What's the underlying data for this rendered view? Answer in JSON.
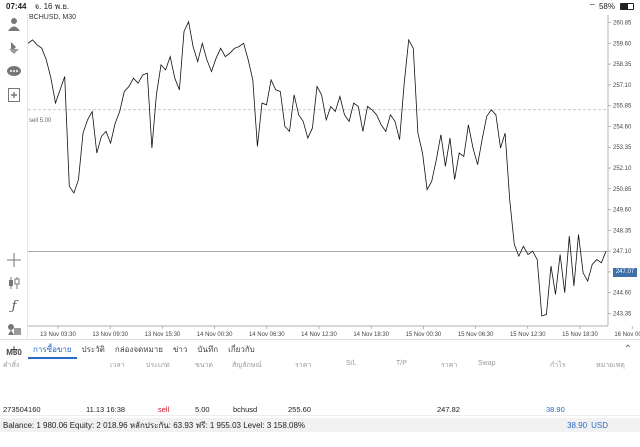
{
  "status": {
    "time": "07:44",
    "date": "จ. 16 พ.ย.",
    "battery": "58%"
  },
  "chart": {
    "symbol": "BCHUSD, M30",
    "sell_label": "sell 5.00",
    "current_price": "247.07",
    "y_ticks": [
      "260.85",
      "259.60",
      "258.35",
      "257.10",
      "255.85",
      "254.60",
      "253.35",
      "252.10",
      "250.85",
      "249.60",
      "248.35",
      "247.10",
      "245.85",
      "244.60",
      "243.35"
    ],
    "x_ticks": [
      "13 Nov 03:30",
      "13 Nov 09:30",
      "13 Nov 15:30",
      "14 Nov 00:30",
      "14 Nov 06:30",
      "14 Nov 12:30",
      "14 Nov 18:30",
      "15 Nov 00:30",
      "15 Nov 06:30",
      "15 Nov 12:30",
      "15 Nov 18:30",
      "16 Nov 00:30"
    ]
  },
  "chart_data": {
    "type": "line",
    "ylim": [
      242.6,
      261.3
    ],
    "horizontal_lines": [
      255.6,
      247.07
    ],
    "values": [
      259.6,
      259.8,
      259.5,
      259.3,
      258.6,
      257.5,
      256.0,
      256.8,
      257.6,
      251.0,
      250.6,
      251.4,
      254.2,
      255.0,
      255.5,
      253.0,
      254.0,
      254.3,
      253.6,
      254.8,
      255.5,
      256.7,
      257.0,
      257.5,
      257.2,
      257.7,
      257.8,
      253.3,
      256.5,
      258.3,
      258.0,
      258.8,
      257.5,
      256.8,
      260.3,
      260.9,
      259.4,
      258.5,
      259.6,
      258.6,
      257.9,
      258.7,
      259.3,
      258.8,
      259.0,
      259.3,
      259.4,
      259.6,
      258.6,
      257.4,
      253.4,
      256.0,
      255.9,
      257.4,
      256.8,
      256.7,
      254.6,
      254.3,
      256.5,
      255.3,
      254.9,
      253.9,
      254.5,
      257.0,
      256.5,
      255.0,
      255.8,
      255.5,
      256.4,
      255.3,
      254.9,
      256.0,
      255.8,
      254.3,
      255.8,
      255.6,
      255.3,
      254.7,
      254.3,
      255.3,
      254.9,
      253.8,
      257.2,
      259.8,
      259.3,
      254.2,
      253.0,
      250.8,
      251.3,
      252.6,
      254.1,
      252.2,
      253.9,
      251.4,
      253.0,
      252.8,
      254.7,
      253.3,
      252.3,
      253.8,
      255.2,
      255.6,
      255.3,
      253.3,
      254.2,
      250.2,
      247.5,
      246.8,
      247.4,
      246.9,
      247.1,
      246.6,
      243.2,
      243.3,
      246.2,
      244.5,
      246.9,
      244.6,
      248.0,
      245.0,
      248.1,
      245.8,
      245.3,
      246.3,
      246.6,
      246.4,
      247.1
    ]
  },
  "toolbar": {
    "icons": [
      "account-icon",
      "trade-icon",
      "chat-icon",
      "new-order-icon",
      "crosshair-icon",
      "candlestick-icon",
      "indicator-icon",
      "objects-icon"
    ],
    "timeframe": "M30"
  },
  "tabs": [
    "การซื้อขาย",
    "ประวัติ",
    "กล่องจดหมาย",
    "ข่าว",
    "บันทึก",
    "เกี่ยวกับ"
  ],
  "columns": [
    "คำสั่ง",
    "เวลา",
    "ประเภท",
    "ขนาด",
    "สัญลักษณ์",
    "ราคา",
    "S/L",
    "T/P",
    "ราคา",
    "Swap",
    "กำไร",
    "หมายเหตุ"
  ],
  "order": {
    "id": "273504160",
    "time": "11.13 16:38",
    "type": "sell",
    "size": "5.00",
    "symbol": "bchusd",
    "open_price": "255.60",
    "current_price": "247.82",
    "profit": "38.90"
  },
  "summary": {
    "text": "Balance: 1 980.06 Equity: 2 018.96 หลักประกัน: 63.93 ฟรี: 1 955.03 Level: 3 158.08%",
    "total": "38.90",
    "currency": "USD"
  }
}
